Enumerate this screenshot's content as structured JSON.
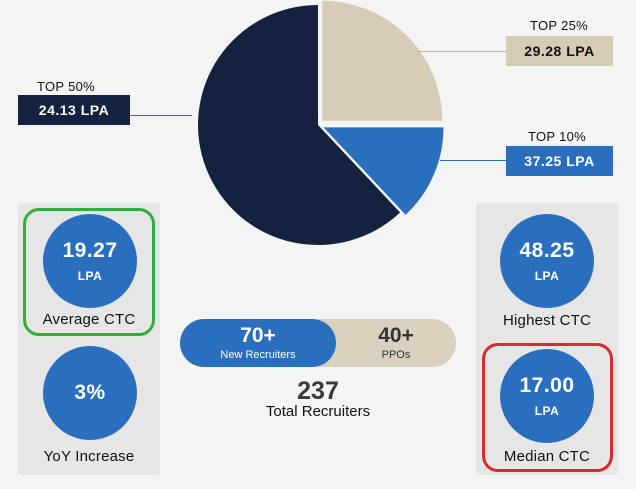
{
  "chart_data": {
    "type": "pie",
    "slices": [
      {
        "name": "TOP 25%",
        "value": 29.28,
        "display": "29.28 LPA",
        "share_percent": 25,
        "color": "#d6cbb5",
        "text_color": "#111111"
      },
      {
        "name": "TOP 10%",
        "value": 37.25,
        "display": "37.25 LPA",
        "share_percent": 13,
        "color": "#2a6fbd",
        "text_color": "#ffffff"
      },
      {
        "name": "TOP 50%",
        "value": 24.13,
        "display": "24.13 LPA",
        "share_percent": 62,
        "color": "#14223f",
        "text_color": "#ffffff"
      }
    ]
  },
  "stats": {
    "average": {
      "value": "19.27",
      "unit": "LPA",
      "label": "Average CTC"
    },
    "yoy": {
      "value": "3%",
      "label": "YoY Increase"
    },
    "highest": {
      "value": "48.25",
      "unit": "LPA",
      "label": "Highest CTC"
    },
    "median": {
      "value": "17.00",
      "unit": "LPA",
      "label": "Median CTC"
    }
  },
  "recruiters": {
    "new": {
      "value": "70+",
      "label": "New Recruiters"
    },
    "ppos": {
      "value": "40+",
      "label": "PPOs"
    },
    "total": {
      "value": "237",
      "label": "Total Recruiters"
    }
  },
  "colors": {
    "accent_blue": "#2a6fbd",
    "navy": "#14223f",
    "beige": "#d6cbb5",
    "panel": "#e6e6e6",
    "highlight_green": "#2fae3a",
    "highlight_red": "#d62b30"
  }
}
